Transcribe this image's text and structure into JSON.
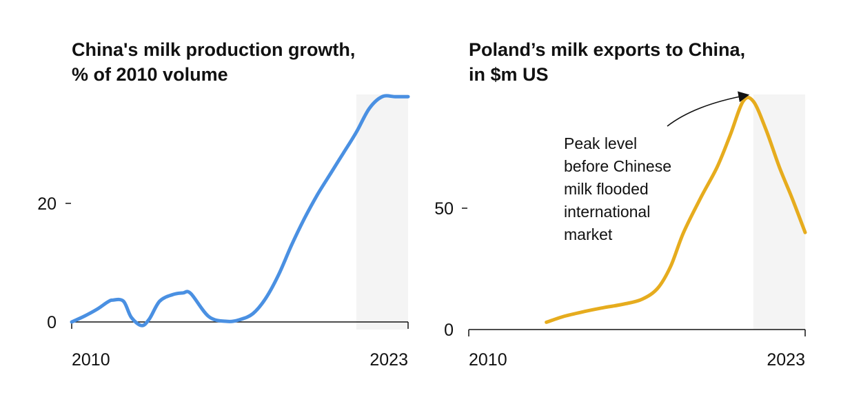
{
  "chart_data": [
    {
      "type": "line",
      "title_line1": "China's milk production growth,",
      "title_line2": "% of 2010 volume",
      "xlabel": "",
      "ylabel": "",
      "x_tick_labels": [
        "2010",
        "2023"
      ],
      "y_tick_labels": [
        "0",
        "20"
      ],
      "y_ticks": [
        0,
        20
      ],
      "xlim": [
        2010,
        2023
      ],
      "ylim": [
        -1,
        38
      ],
      "highlight_start": 2021,
      "line_color": "#4a90e2",
      "series": [
        {
          "name": "China milk production growth",
          "x": [
            2010,
            2010.5,
            2011,
            2011.4,
            2011.6,
            2012.0,
            2012.3,
            2012.7,
            2013.0,
            2013.4,
            2013.9,
            2014.3,
            2014.6,
            2015.3,
            2016.0,
            2016.5,
            2017.0,
            2017.5,
            2018.0,
            2018.5,
            2019.0,
            2019.5,
            2020.0,
            2020.5,
            2021.0,
            2021.5,
            2022.0,
            2022.5,
            2023.0
          ],
          "values": [
            0,
            1,
            2.2,
            3.4,
            3.7,
            3.5,
            0.8,
            -0.6,
            0.5,
            3.5,
            4.6,
            4.9,
            4.8,
            0.9,
            0.1,
            0.4,
            1.4,
            4.0,
            8.0,
            13.0,
            17.5,
            21.5,
            25.0,
            28.5,
            32.0,
            36.0,
            38.0,
            38.0,
            38.0
          ]
        }
      ]
    },
    {
      "type": "line",
      "title_line1": "Poland’s milk exports to China,",
      "title_line2": "in $m US",
      "xlabel": "",
      "ylabel": "",
      "x_tick_labels": [
        "2010",
        "2023"
      ],
      "y_tick_labels": [
        "0",
        "50"
      ],
      "y_ticks": [
        0,
        50
      ],
      "xlim": [
        2010,
        2023
      ],
      "ylim": [
        0,
        96
      ],
      "highlight_start": 2021,
      "line_color": "#e6ac1e",
      "annotation": "Peak level\nbefore Chinese\nmilk flooded\ninternational\nmarket",
      "series": [
        {
          "name": "Poland milk exports to China",
          "x": [
            2013,
            2013.7,
            2014.5,
            2015.2,
            2016.0,
            2016.7,
            2017.3,
            2017.8,
            2018.3,
            2019.0,
            2019.6,
            2020.1,
            2020.6,
            2021.0,
            2021.5,
            2022.0,
            2022.5,
            2023.0
          ],
          "values": [
            3,
            5.5,
            7.5,
            9,
            10.5,
            12.5,
            17,
            26,
            40,
            55,
            67,
            80,
            94,
            94,
            82,
            67,
            54,
            40
          ]
        }
      ]
    }
  ]
}
